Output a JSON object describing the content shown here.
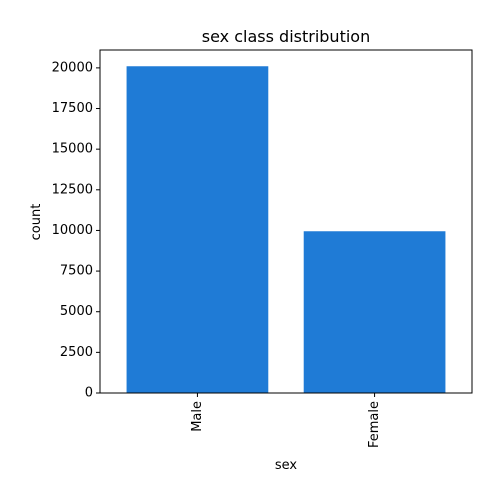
{
  "chart_data": {
    "type": "bar",
    "title": "sex class distribution",
    "xlabel": "sex",
    "ylabel": "count",
    "categories": [
      "Male",
      "Female"
    ],
    "values": [
      20100,
      9950
    ],
    "ylim": [
      0,
      21100
    ],
    "yticks": [
      0,
      2500,
      5000,
      7500,
      10000,
      12500,
      15000,
      17500,
      20000
    ],
    "ytick_labels": [
      "0",
      "2500",
      "5000",
      "7500",
      "10000",
      "12500",
      "15000",
      "17500",
      "20000"
    ],
    "bar_color": "#1f7bd6",
    "grid": false,
    "legend": false
  }
}
